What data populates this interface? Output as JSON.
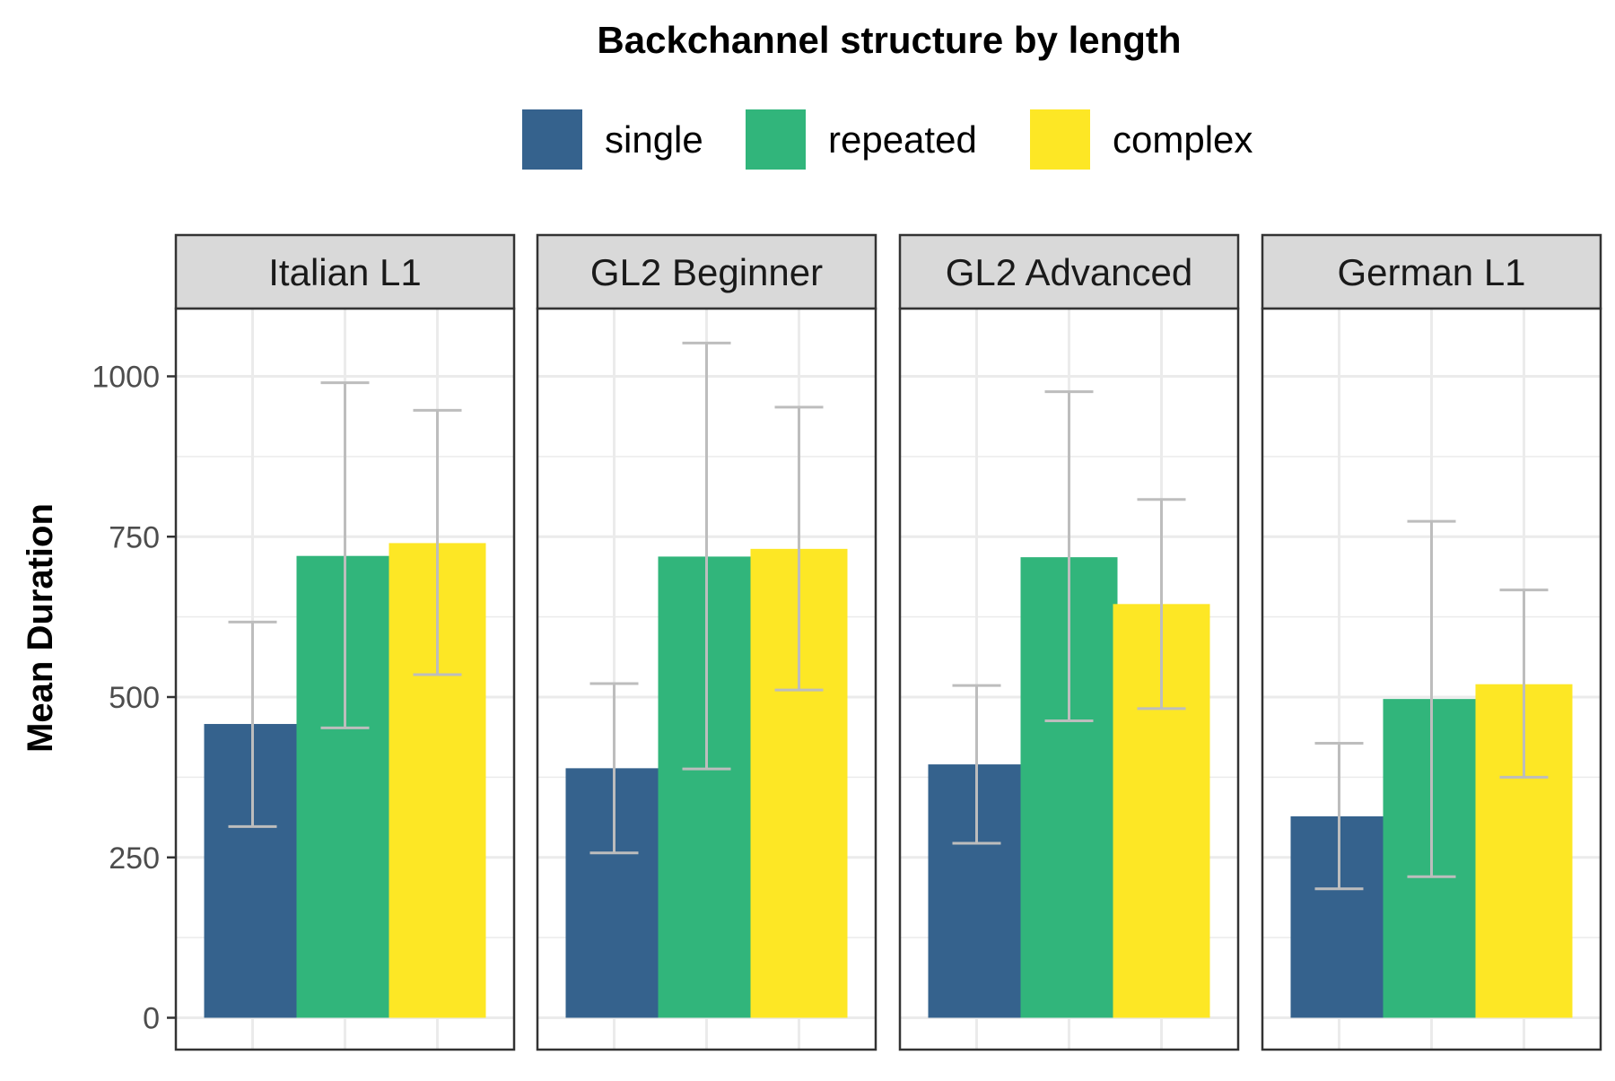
{
  "chart_data": {
    "type": "bar",
    "title": "Backchannel structure by length",
    "xlabel": "",
    "ylabel": "Mean Duration",
    "ylim": [
      0,
      1100
    ],
    "y_ticks": [
      0,
      250,
      500,
      750,
      1000
    ],
    "y_tick_labels": [
      "0",
      "250",
      "500",
      "750",
      "1000"
    ],
    "grid": true,
    "legend_position": "top",
    "categories": [
      "single",
      "repeated",
      "complex"
    ],
    "colors": {
      "single": "#35628d",
      "repeated": "#31b57b",
      "complex": "#fde725"
    },
    "panels": [
      {
        "label": "Italian L1",
        "series": [
          {
            "name": "single",
            "value": 458,
            "error_low": 298,
            "error_high": 617
          },
          {
            "name": "repeated",
            "value": 720,
            "error_low": 452,
            "error_high": 990
          },
          {
            "name": "complex",
            "value": 740,
            "error_low": 535,
            "error_high": 947
          }
        ]
      },
      {
        "label": "GL2 Beginner",
        "series": [
          {
            "name": "single",
            "value": 389,
            "error_low": 257,
            "error_high": 521
          },
          {
            "name": "repeated",
            "value": 719,
            "error_low": 388,
            "error_high": 1052
          },
          {
            "name": "complex",
            "value": 731,
            "error_low": 511,
            "error_high": 952
          }
        ]
      },
      {
        "label": "GL2 Advanced",
        "series": [
          {
            "name": "single",
            "value": 395,
            "error_low": 272,
            "error_high": 518
          },
          {
            "name": "repeated",
            "value": 718,
            "error_low": 463,
            "error_high": 976
          },
          {
            "name": "complex",
            "value": 645,
            "error_low": 482,
            "error_high": 808
          }
        ]
      },
      {
        "label": "German L1",
        "series": [
          {
            "name": "single",
            "value": 314,
            "error_low": 201,
            "error_high": 428
          },
          {
            "name": "repeated",
            "value": 497,
            "error_low": 220,
            "error_high": 774
          },
          {
            "name": "complex",
            "value": 520,
            "error_low": 375,
            "error_high": 667
          }
        ]
      }
    ]
  }
}
